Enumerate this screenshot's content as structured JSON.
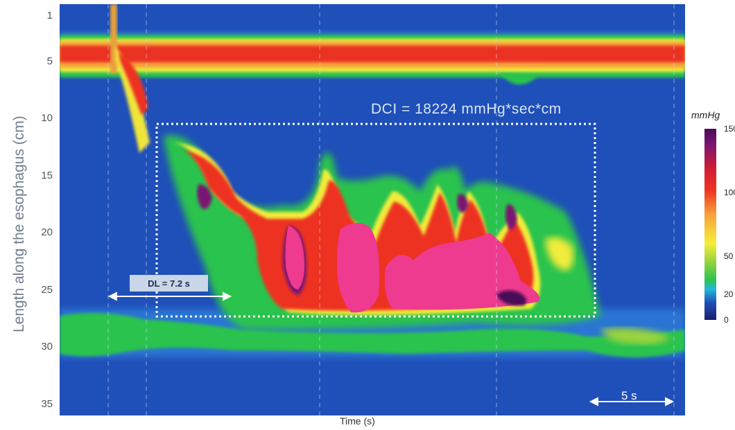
{
  "chart_data": {
    "type": "heatmap",
    "title": "",
    "xlabel": "Time (s)",
    "ylabel": "Length along the esophagus (cm)",
    "y_ticks": [
      "1",
      "5",
      "10",
      "15",
      "20",
      "25",
      "30",
      "35"
    ],
    "ylim": [
      0,
      36
    ],
    "y_inverted": true,
    "colorbar": {
      "label": "mmHg",
      "ticks": [
        "150",
        "100",
        "50",
        "20",
        "0"
      ],
      "range": [
        0,
        150
      ],
      "colors": [
        "#18206e",
        "#1f4fb8",
        "#22b7d9",
        "#2dc34e",
        "#9bd43c",
        "#f5f03a",
        "#f7a23a",
        "#ee3323",
        "#cc1b36",
        "#7a1472",
        "#4a0b58"
      ]
    },
    "annotations": {
      "dci": "DCI = 18224  mmHg*sec*cm",
      "distal_latency": "DL = 7.2 s",
      "scale_bar": "5 s"
    },
    "dci_value": 18224,
    "dl_value_s": 7.2,
    "scale_bar_s": 5
  }
}
